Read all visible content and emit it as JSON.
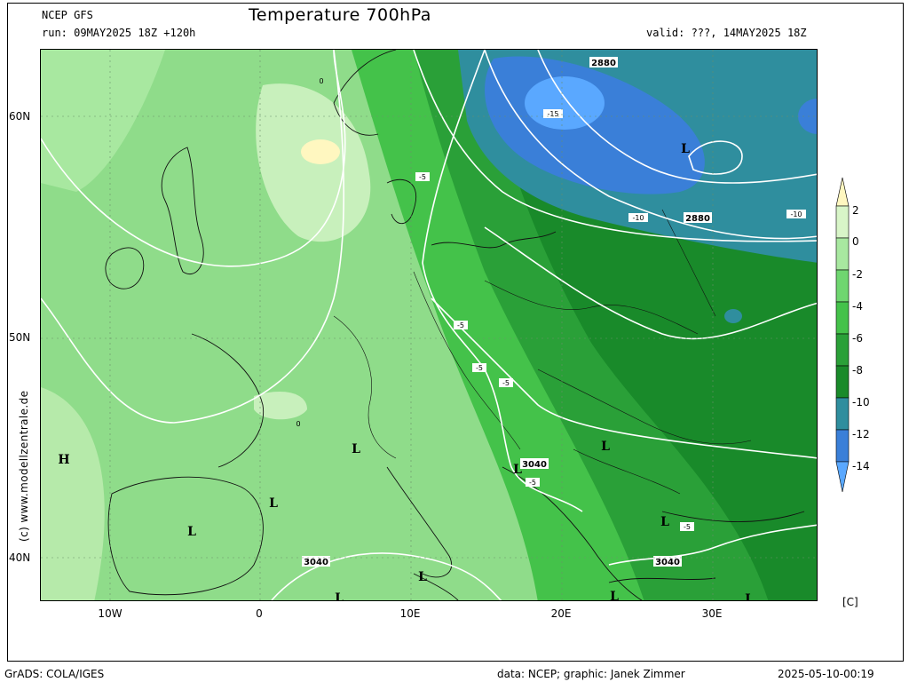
{
  "header": {
    "model": "NCEP GFS",
    "run": "run: 09MAY2025 18Z +120h",
    "title": "Temperature 700hPa",
    "valid": "valid: ???, 14MAY2025 18Z"
  },
  "axes": {
    "lat_labels": [
      "60N",
      "50N",
      "40N"
    ],
    "lon_labels": [
      "10W",
      "0",
      "10E",
      "20E",
      "30E"
    ]
  },
  "colorbar": {
    "labels": [
      "2",
      "0",
      "-2",
      "-4",
      "-6",
      "-8",
      "-10",
      "-12",
      "-14"
    ],
    "unit": "[C]",
    "colors": [
      "#fff7c0",
      "#d8f5c8",
      "#a8e8a0",
      "#6fd670",
      "#44c24a",
      "#2aa038",
      "#198a2a",
      "#2f8e9e",
      "#3a7fd8",
      "#5aa8ff"
    ]
  },
  "map": {
    "pressure_labels": [
      "2880",
      "2880",
      "3040",
      "3040",
      "3040"
    ],
    "temp_labels": [
      "-15",
      "-10",
      "-10",
      "-5",
      "-5",
      "-5",
      "-5",
      "-5",
      "-5",
      "-5",
      "0",
      "0"
    ],
    "highs": [
      "H"
    ],
    "lows": [
      "L",
      "L",
      "L",
      "L",
      "L",
      "L",
      "L",
      "L",
      "L",
      "L",
      "L",
      "L"
    ]
  },
  "credit_vertical": "(c) www.modellzentrale.de",
  "footer": {
    "left": "GrADS: COLA/IGES",
    "center": "data: NCEP; graphic: Janek Zimmer",
    "right": "2025-05-10-00:19"
  }
}
